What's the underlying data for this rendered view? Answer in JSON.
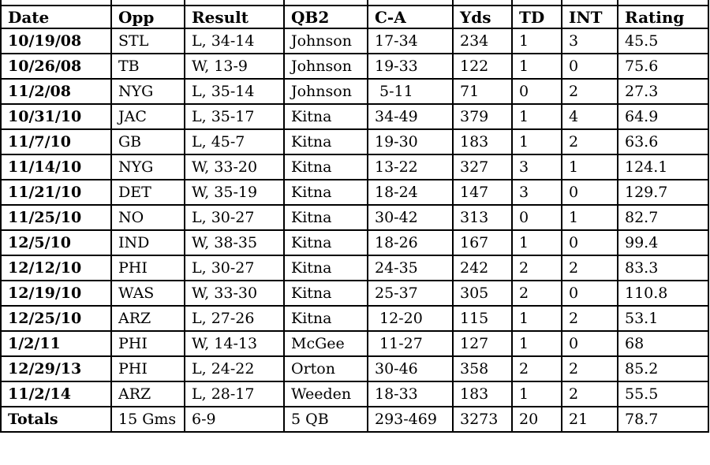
{
  "page": {
    "background_color": "#ffffff",
    "grid_color": "#000000",
    "text_color": "#000000"
  },
  "chart_data": {
    "type": "table",
    "title": "",
    "columns": [
      "Date",
      "Opp",
      "Result",
      "QB2",
      "C-A",
      "Yds",
      "TD",
      "INT",
      "Rating"
    ],
    "rows": [
      [
        "10/19/08",
        "STL",
        "L, 34-14",
        "Johnson",
        "17-34",
        "234",
        "1",
        "3",
        "45.5"
      ],
      [
        "10/26/08",
        "TB",
        "W, 13-9",
        "Johnson",
        "19-33",
        "122",
        "1",
        "0",
        "75.6"
      ],
      [
        "11/2/08",
        "NYG",
        "L, 35-14",
        "Johnson",
        " 5-11",
        "71",
        "0",
        "2",
        "27.3"
      ],
      [
        "10/31/10",
        "JAC",
        "L, 35-17",
        "Kitna",
        "34-49",
        "379",
        "1",
        "4",
        "64.9"
      ],
      [
        "11/7/10",
        "GB",
        "L, 45-7",
        "Kitna",
        "19-30",
        "183",
        "1",
        "2",
        "63.6"
      ],
      [
        "11/14/10",
        "NYG",
        "W, 33-20",
        "Kitna",
        "13-22",
        "327",
        "3",
        "1",
        "124.1"
      ],
      [
        "11/21/10",
        "DET",
        "W, 35-19",
        "Kitna",
        "18-24",
        "147",
        "3",
        "0",
        "129.7"
      ],
      [
        "11/25/10",
        "NO",
        "L, 30-27",
        "Kitna",
        "30-42",
        "313",
        "0",
        "1",
        "82.7"
      ],
      [
        "12/5/10",
        "IND",
        "W, 38-35",
        "Kitna",
        "18-26",
        "167",
        "1",
        "0",
        "99.4"
      ],
      [
        "12/12/10",
        "PHI",
        "L, 30-27",
        "Kitna",
        "24-35",
        "242",
        "2",
        "2",
        "83.3"
      ],
      [
        "12/19/10",
        "WAS",
        "W, 33-30",
        "Kitna",
        "25-37",
        "305",
        "2",
        "0",
        "110.8"
      ],
      [
        "12/25/10",
        "ARZ",
        "L, 27-26",
        "Kitna",
        " 12-20",
        "115",
        "1",
        "2",
        "53.1"
      ],
      [
        "1/2/11",
        "PHI",
        "W, 14-13",
        "McGee",
        " 11-27",
        "127",
        "1",
        "0",
        "68"
      ],
      [
        "12/29/13",
        "PHI",
        "L, 24-22",
        "Orton",
        "30-46",
        "358",
        "2",
        "2",
        "85.2"
      ],
      [
        "11/2/14",
        "ARZ",
        "L, 28-17",
        "Weeden",
        "18-33",
        "183",
        "1",
        "2",
        "55.5"
      ]
    ],
    "totals_row": [
      "Totals",
      "15 Gms",
      "6-9",
      "5 QB",
      "293-469",
      "3273",
      "20",
      "21",
      "78.7"
    ]
  }
}
